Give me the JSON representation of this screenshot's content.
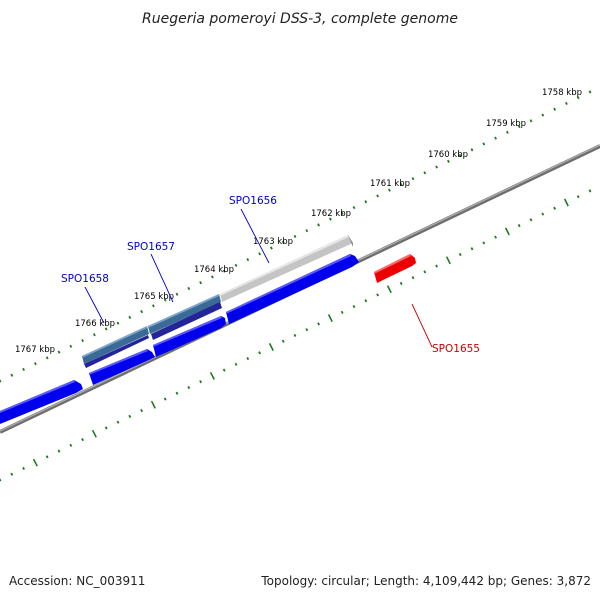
{
  "title": "Ruegeria pomeroyi DSS-3, complete genome",
  "colors": {
    "background": "#ffffff",
    "backbone": "#8c8c8c",
    "tick": "#1f7a1f",
    "forward_cds": "#0000ee",
    "selected_gene_label": "#0000cc",
    "highlight_gene_label": "#cc0000",
    "highlight_cds": "#ee0000",
    "blast_hit_dark": "#3a6a96",
    "blast_hit_light": "#c8c8c8"
  },
  "scale_labels": [
    "1758 kbp",
    "1759 kbp",
    "1760 kbp",
    "1761 kbp",
    "1762 kbp",
    "1763 kbp",
    "1764 kbp",
    "1765 kbp",
    "1766 kbp",
    "1767 kbp"
  ],
  "gene_labels": [
    {
      "text": "SPO1656",
      "color": "#0000cc"
    },
    {
      "text": "SPO1657",
      "color": "#0000cc"
    },
    {
      "text": "SPO1658",
      "color": "#0000cc"
    },
    {
      "text": "SPO1655",
      "color": "#cc0000"
    }
  ],
  "footer": {
    "accession": "Accession: NC_003911",
    "summary": "Topology: circular; Length: 4,109,442 bp; Genes: 3,872"
  }
}
